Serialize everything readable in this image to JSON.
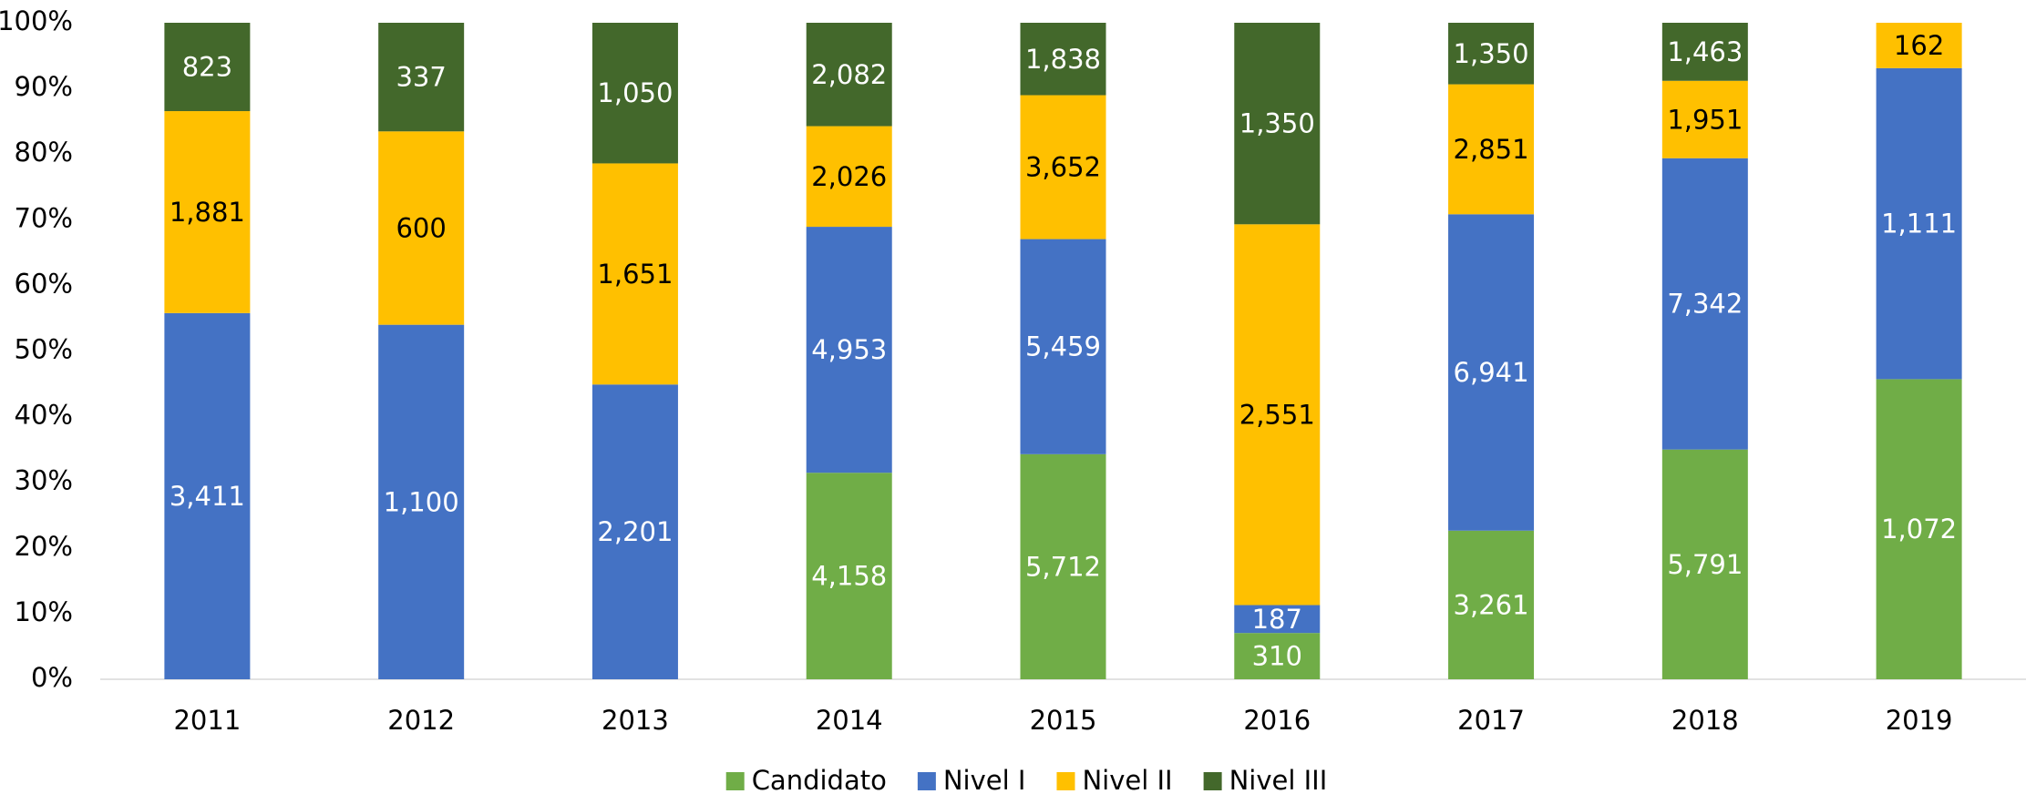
{
  "chart_data": {
    "type": "bar",
    "stacking": "percent",
    "categories": [
      "2011",
      "2012",
      "2013",
      "2014",
      "2015",
      "2016",
      "2017",
      "2018",
      "2019"
    ],
    "series": [
      {
        "name": "Candidato",
        "color": "#70ad47",
        "values": [
          null,
          null,
          null,
          4158,
          5712,
          310,
          3261,
          5791,
          1072
        ],
        "value_labels": [
          null,
          null,
          null,
          "4,158",
          "5,712",
          "310",
          "3,261",
          "5,791",
          "1,072"
        ]
      },
      {
        "name": "Nivel I",
        "color": "#4472c4",
        "values": [
          3411,
          1100,
          2201,
          4953,
          5459,
          187,
          6941,
          7342,
          1111
        ],
        "value_labels": [
          "3,411",
          "1,100",
          "2,201",
          "4,953",
          "5,459",
          "187",
          "6,941",
          "7,342",
          "1,111"
        ]
      },
      {
        "name": "Nivel II",
        "color": "#ffc000",
        "values": [
          1881,
          600,
          1651,
          2026,
          3652,
          2551,
          2851,
          1951,
          162
        ],
        "value_labels": [
          "1,881",
          "600",
          "1,651",
          "2,026",
          "3,652",
          "2,551",
          "2,851",
          "1,951",
          "162"
        ]
      },
      {
        "name": "Nivel III",
        "color": "#43682b",
        "values": [
          823,
          337,
          1050,
          2082,
          1838,
          1350,
          1350,
          1463,
          null
        ],
        "value_labels": [
          "823",
          "337",
          "1,050",
          "2,082",
          "1,838",
          "1,350",
          "1,350",
          "1,463",
          null
        ]
      }
    ],
    "ylim": [
      0,
      100
    ],
    "yticks": [
      {
        "value": 0,
        "label": "0%"
      },
      {
        "value": 10,
        "label": "10%"
      },
      {
        "value": 20,
        "label": "20%"
      },
      {
        "value": 30,
        "label": "30%"
      },
      {
        "value": 40,
        "label": "40%"
      },
      {
        "value": 50,
        "label": "50%"
      },
      {
        "value": 60,
        "label": "60%"
      },
      {
        "value": 70,
        "label": "70%"
      },
      {
        "value": 80,
        "label": "80%"
      },
      {
        "value": 90,
        "label": "90%"
      },
      {
        "value": 100,
        "label": "100%"
      }
    ],
    "legend": "bottom"
  }
}
